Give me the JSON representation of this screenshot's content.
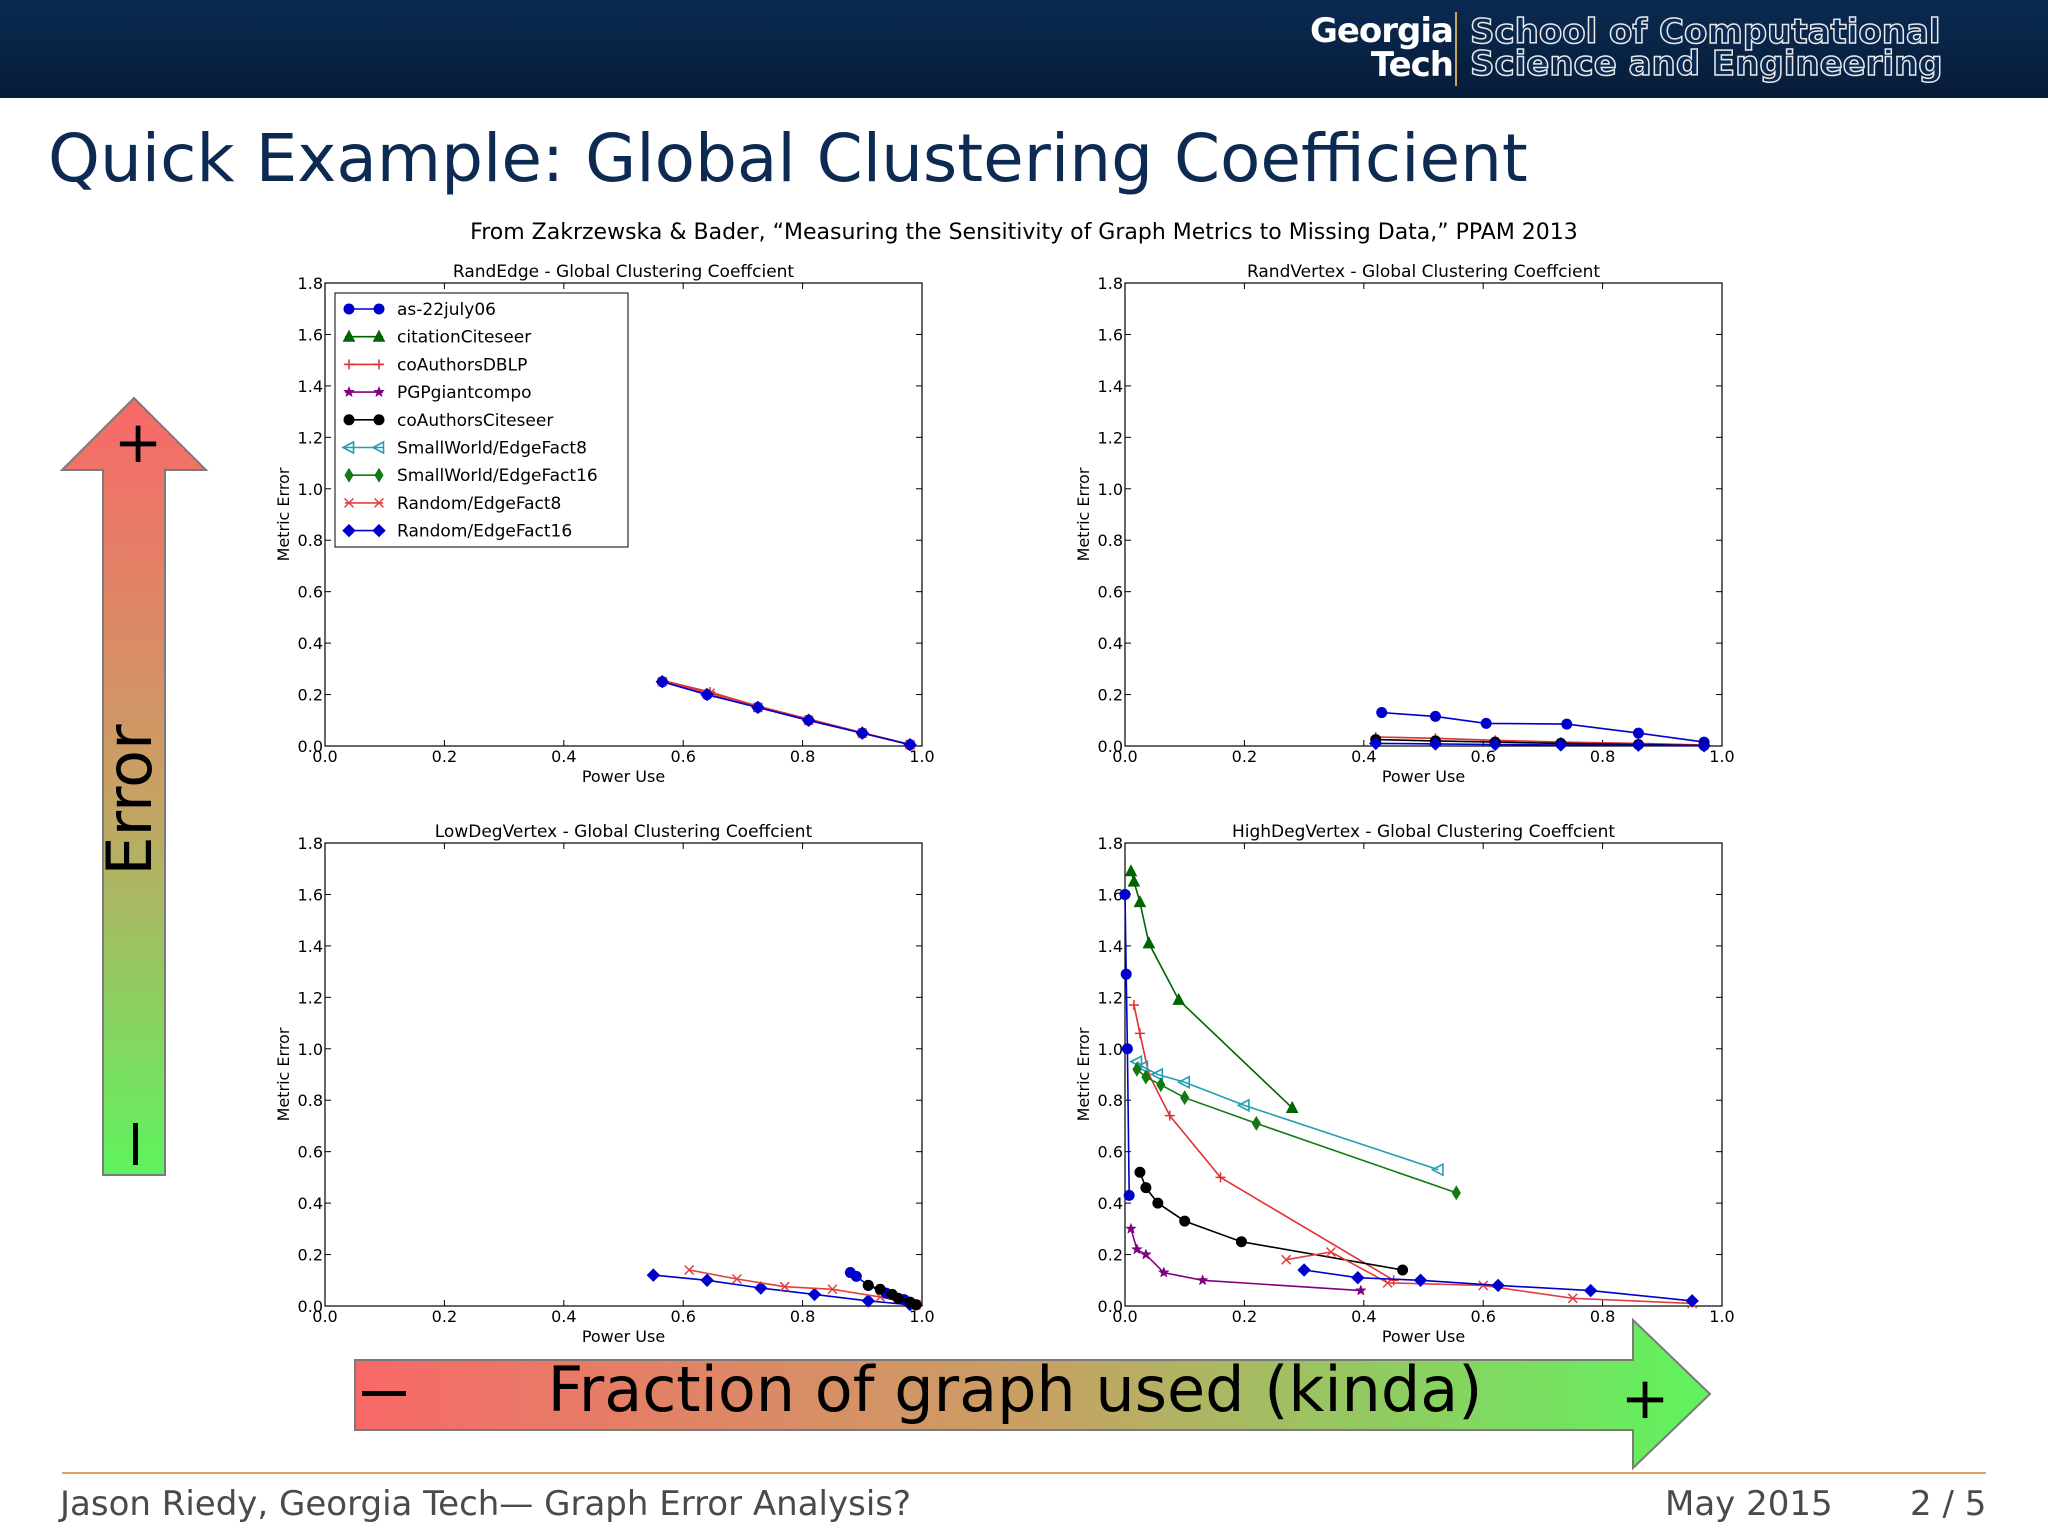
{
  "header": {
    "logo_line1": "Georgia",
    "logo_line2": "Tech",
    "school_line1": "School of Computational",
    "school_line2": "Science and Engineering"
  },
  "slide": {
    "title": "Quick Example: Global Clustering Coefficient",
    "citation": "From Zakrzewska & Bader, “Measuring the Sensitivity of Graph Metrics to Missing Data,” PPAM 2013"
  },
  "error_arrow": {
    "label": "Error",
    "plus": "+",
    "minus": "−"
  },
  "fraction_arrow": {
    "label": "Fraction of graph used (kinda)",
    "minus": "−",
    "plus": "+"
  },
  "footer": {
    "author": "Jason Riedy, Georgia Tech— Graph Error Analysis?",
    "date": "May 2015",
    "page": "2 / 5"
  },
  "legend": [
    {
      "name": "as-22july06",
      "color": "#0000cc",
      "marker": "circle"
    },
    {
      "name": "citationCiteseer",
      "color": "#006400",
      "marker": "triangle-up"
    },
    {
      "name": "coAuthorsDBLP",
      "color": "#e03030",
      "marker": "plus"
    },
    {
      "name": "PGPgiantcompo",
      "color": "#800080",
      "marker": "star"
    },
    {
      "name": "coAuthorsCiteseer",
      "color": "#000000",
      "marker": "circle"
    },
    {
      "name": "SmallWorld/EdgeFact8",
      "color": "#20a0b0",
      "marker": "triangle-left"
    },
    {
      "name": "SmallWorld/EdgeFact16",
      "color": "#127a12",
      "marker": "diamond-thin"
    },
    {
      "name": "Random/EdgeFact8",
      "color": "#e04040",
      "marker": "x"
    },
    {
      "name": "Random/EdgeFact16",
      "color": "#0000cc",
      "marker": "diamond"
    }
  ],
  "chart_data": [
    {
      "type": "line",
      "title": "RandEdge - Global Clustering Coeffcient",
      "xlabel": "Power Use",
      "ylabel": "Metric Error",
      "xlim": [
        0,
        1.0
      ],
      "ylim": [
        0,
        1.8
      ],
      "xticks": [
        "0.0",
        "0.2",
        "0.4",
        "0.6",
        "0.8",
        "1.0"
      ],
      "yticks": [
        "0.0",
        "0.2",
        "0.4",
        "0.6",
        "0.8",
        "1.0",
        "1.2",
        "1.4",
        "1.6",
        "1.8"
      ],
      "legend": "top-left",
      "series": [
        {
          "name": "as-22july06",
          "x": [
            0.565,
            0.64,
            0.725,
            0.81,
            0.9,
            0.98
          ],
          "y": [
            0.25,
            0.2,
            0.15,
            0.1,
            0.05,
            0.005
          ]
        },
        {
          "name": "coAuthorsDBLP",
          "x": [
            0.565,
            0.645,
            0.725,
            0.81,
            0.9,
            0.98
          ],
          "y": [
            0.255,
            0.21,
            0.155,
            0.105,
            0.052,
            0.006
          ]
        },
        {
          "name": "Random/EdgeFact8",
          "x": [
            0.565,
            0.645,
            0.725,
            0.81,
            0.9,
            0.98
          ],
          "y": [
            0.25,
            0.205,
            0.15,
            0.1,
            0.05,
            0.005
          ]
        },
        {
          "name": "Random/EdgeFact16",
          "x": [
            0.565,
            0.64,
            0.725,
            0.81,
            0.9,
            0.98
          ],
          "y": [
            0.25,
            0.2,
            0.15,
            0.1,
            0.05,
            0.005
          ]
        }
      ]
    },
    {
      "type": "line",
      "title": "RandVertex - Global Clustering Coeffcient",
      "xlabel": "Power Use",
      "ylabel": "Metric Error",
      "xlim": [
        0,
        1.0
      ],
      "ylim": [
        0,
        1.8
      ],
      "xticks": [
        "0.0",
        "0.2",
        "0.4",
        "0.6",
        "0.8",
        "1.0"
      ],
      "yticks": [
        "0.0",
        "0.2",
        "0.4",
        "0.6",
        "0.8",
        "1.0",
        "1.2",
        "1.4",
        "1.6",
        "1.8"
      ],
      "series": [
        {
          "name": "as-22july06",
          "x": [
            0.43,
            0.52,
            0.605,
            0.74,
            0.86,
            0.97
          ],
          "y": [
            0.13,
            0.115,
            0.088,
            0.085,
            0.05,
            0.015
          ]
        },
        {
          "name": "coAuthorsDBLP",
          "x": [
            0.42,
            0.52,
            0.62,
            0.73,
            0.86,
            0.97
          ],
          "y": [
            0.035,
            0.03,
            0.022,
            0.015,
            0.01,
            0.004
          ]
        },
        {
          "name": "coAuthorsCiteseer",
          "x": [
            0.42,
            0.52,
            0.62,
            0.73,
            0.86,
            0.97
          ],
          "y": [
            0.025,
            0.02,
            0.015,
            0.01,
            0.006,
            0.002
          ]
        },
        {
          "name": "Random/EdgeFact16",
          "x": [
            0.42,
            0.52,
            0.62,
            0.73,
            0.86,
            0.97
          ],
          "y": [
            0.01,
            0.008,
            0.006,
            0.004,
            0.003,
            0.001
          ]
        }
      ]
    },
    {
      "type": "line",
      "title": "LowDegVertex - Global Clustering Coeffcient",
      "xlabel": "Power Use",
      "ylabel": "Metric Error",
      "xlim": [
        0,
        1.0
      ],
      "ylim": [
        0,
        1.8
      ],
      "xticks": [
        "0.0",
        "0.2",
        "0.4",
        "0.6",
        "0.8",
        "1.0"
      ],
      "yticks": [
        "0.0",
        "0.2",
        "0.4",
        "0.6",
        "0.8",
        "1.0",
        "1.2",
        "1.4",
        "1.6",
        "1.8"
      ],
      "series": [
        {
          "name": "Random/EdgeFact16",
          "x": [
            0.55,
            0.64,
            0.73,
            0.82,
            0.91,
            0.98
          ],
          "y": [
            0.12,
            0.1,
            0.07,
            0.045,
            0.02,
            0.005
          ]
        },
        {
          "name": "Random/EdgeFact8",
          "x": [
            0.61,
            0.69,
            0.77,
            0.85,
            0.93,
            0.99
          ],
          "y": [
            0.14,
            0.105,
            0.075,
            0.065,
            0.035,
            0.005
          ]
        },
        {
          "name": "as-22july06",
          "x": [
            0.88,
            0.89,
            0.91,
            0.94,
            0.97,
            0.99
          ],
          "y": [
            0.13,
            0.115,
            0.08,
            0.05,
            0.025,
            0.005
          ]
        },
        {
          "name": "coAuthorsCiteseer",
          "x": [
            0.91,
            0.93,
            0.95,
            0.96,
            0.98,
            0.99
          ],
          "y": [
            0.08,
            0.065,
            0.045,
            0.03,
            0.015,
            0.005
          ]
        }
      ]
    },
    {
      "type": "line",
      "title": "HighDegVertex - Global Clustering Coeffcient",
      "xlabel": "Power Use",
      "ylabel": "Metric Error",
      "xlim": [
        0,
        1.0
      ],
      "ylim": [
        0,
        1.8
      ],
      "xticks": [
        "0.0",
        "0.2",
        "0.4",
        "0.6",
        "0.8",
        "1.0"
      ],
      "yticks": [
        "0.0",
        "0.2",
        "0.4",
        "0.6",
        "0.8",
        "1.0",
        "1.2",
        "1.4",
        "1.6",
        "1.8"
      ],
      "series": [
        {
          "name": "as-22july06",
          "x": [
            0.0,
            0.002,
            0.004,
            0.007
          ],
          "y": [
            1.6,
            1.29,
            1.0,
            0.43
          ]
        },
        {
          "name": "citationCiteseer",
          "x": [
            0.01,
            0.015,
            0.025,
            0.04,
            0.09,
            0.28
          ],
          "y": [
            1.69,
            1.65,
            1.57,
            1.41,
            1.19,
            0.77
          ]
        },
        {
          "name": "coAuthorsDBLP",
          "x": [
            0.015,
            0.025,
            0.04,
            0.075,
            0.16,
            0.45
          ],
          "y": [
            1.17,
            1.06,
            0.9,
            0.74,
            0.5,
            0.1
          ]
        },
        {
          "name": "SmallWorld/EdgeFact8",
          "x": [
            0.02,
            0.03,
            0.055,
            0.1,
            0.2,
            0.525
          ],
          "y": [
            0.95,
            0.93,
            0.9,
            0.87,
            0.78,
            0.53
          ]
        },
        {
          "name": "SmallWorld/EdgeFact16",
          "x": [
            0.02,
            0.035,
            0.06,
            0.1,
            0.22,
            0.555
          ],
          "y": [
            0.92,
            0.89,
            0.86,
            0.81,
            0.71,
            0.44
          ]
        },
        {
          "name": "coAuthorsCiteseer",
          "x": [
            0.025,
            0.035,
            0.055,
            0.1,
            0.195,
            0.465
          ],
          "y": [
            0.52,
            0.46,
            0.4,
            0.33,
            0.25,
            0.14
          ]
        },
        {
          "name": "PGPgiantcompo",
          "x": [
            0.01,
            0.02,
            0.035,
            0.065,
            0.13,
            0.395
          ],
          "y": [
            0.3,
            0.22,
            0.2,
            0.13,
            0.1,
            0.06
          ]
        },
        {
          "name": "Random/EdgeFact8",
          "x": [
            0.27,
            0.345,
            0.44,
            0.6,
            0.75,
            0.95
          ],
          "y": [
            0.18,
            0.21,
            0.09,
            0.08,
            0.03,
            0.01
          ]
        },
        {
          "name": "Random/EdgeFact16",
          "x": [
            0.3,
            0.39,
            0.495,
            0.625,
            0.78,
            0.95
          ],
          "y": [
            0.14,
            0.11,
            0.1,
            0.08,
            0.06,
            0.02
          ]
        }
      ]
    }
  ]
}
